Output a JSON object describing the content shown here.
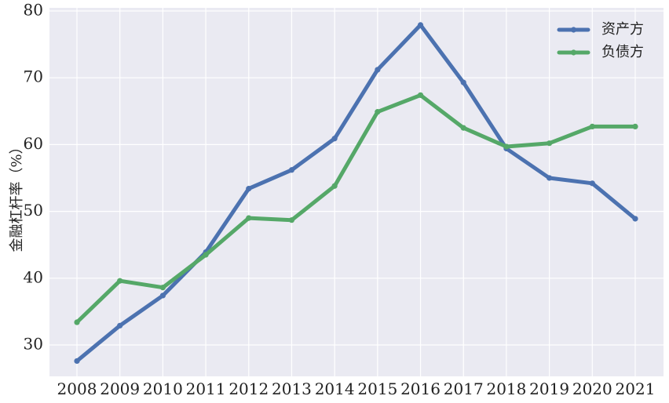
{
  "chart_data": {
    "type": "line",
    "title": "",
    "xlabel": "",
    "ylabel": "金融杠杆率（%）",
    "categories": [
      "2008",
      "2009",
      "2010",
      "2011",
      "2012",
      "2013",
      "2014",
      "2015",
      "2016",
      "2017",
      "2018",
      "2019",
      "2020",
      "2021"
    ],
    "y_ticks": [
      30,
      40,
      50,
      60,
      70,
      80
    ],
    "ylim": [
      25,
      80.5
    ],
    "grid": true,
    "legend_position": "top-right",
    "series": [
      {
        "name": "资产方",
        "color": "#4c72b0",
        "values": [
          27.6,
          32.9,
          37.4,
          43.9,
          53.4,
          56.2,
          60.9,
          71.2,
          77.9,
          69.3,
          59.4,
          55.0,
          54.2,
          48.9
        ]
      },
      {
        "name": "负债方",
        "color": "#55a868",
        "values": [
          33.4,
          39.6,
          38.6,
          43.5,
          49.0,
          48.7,
          53.8,
          64.9,
          67.4,
          62.5,
          59.7,
          60.2,
          62.7,
          62.7
        ]
      }
    ],
    "plot_background": "#eaeaf2",
    "grid_color": "#ffffff"
  }
}
